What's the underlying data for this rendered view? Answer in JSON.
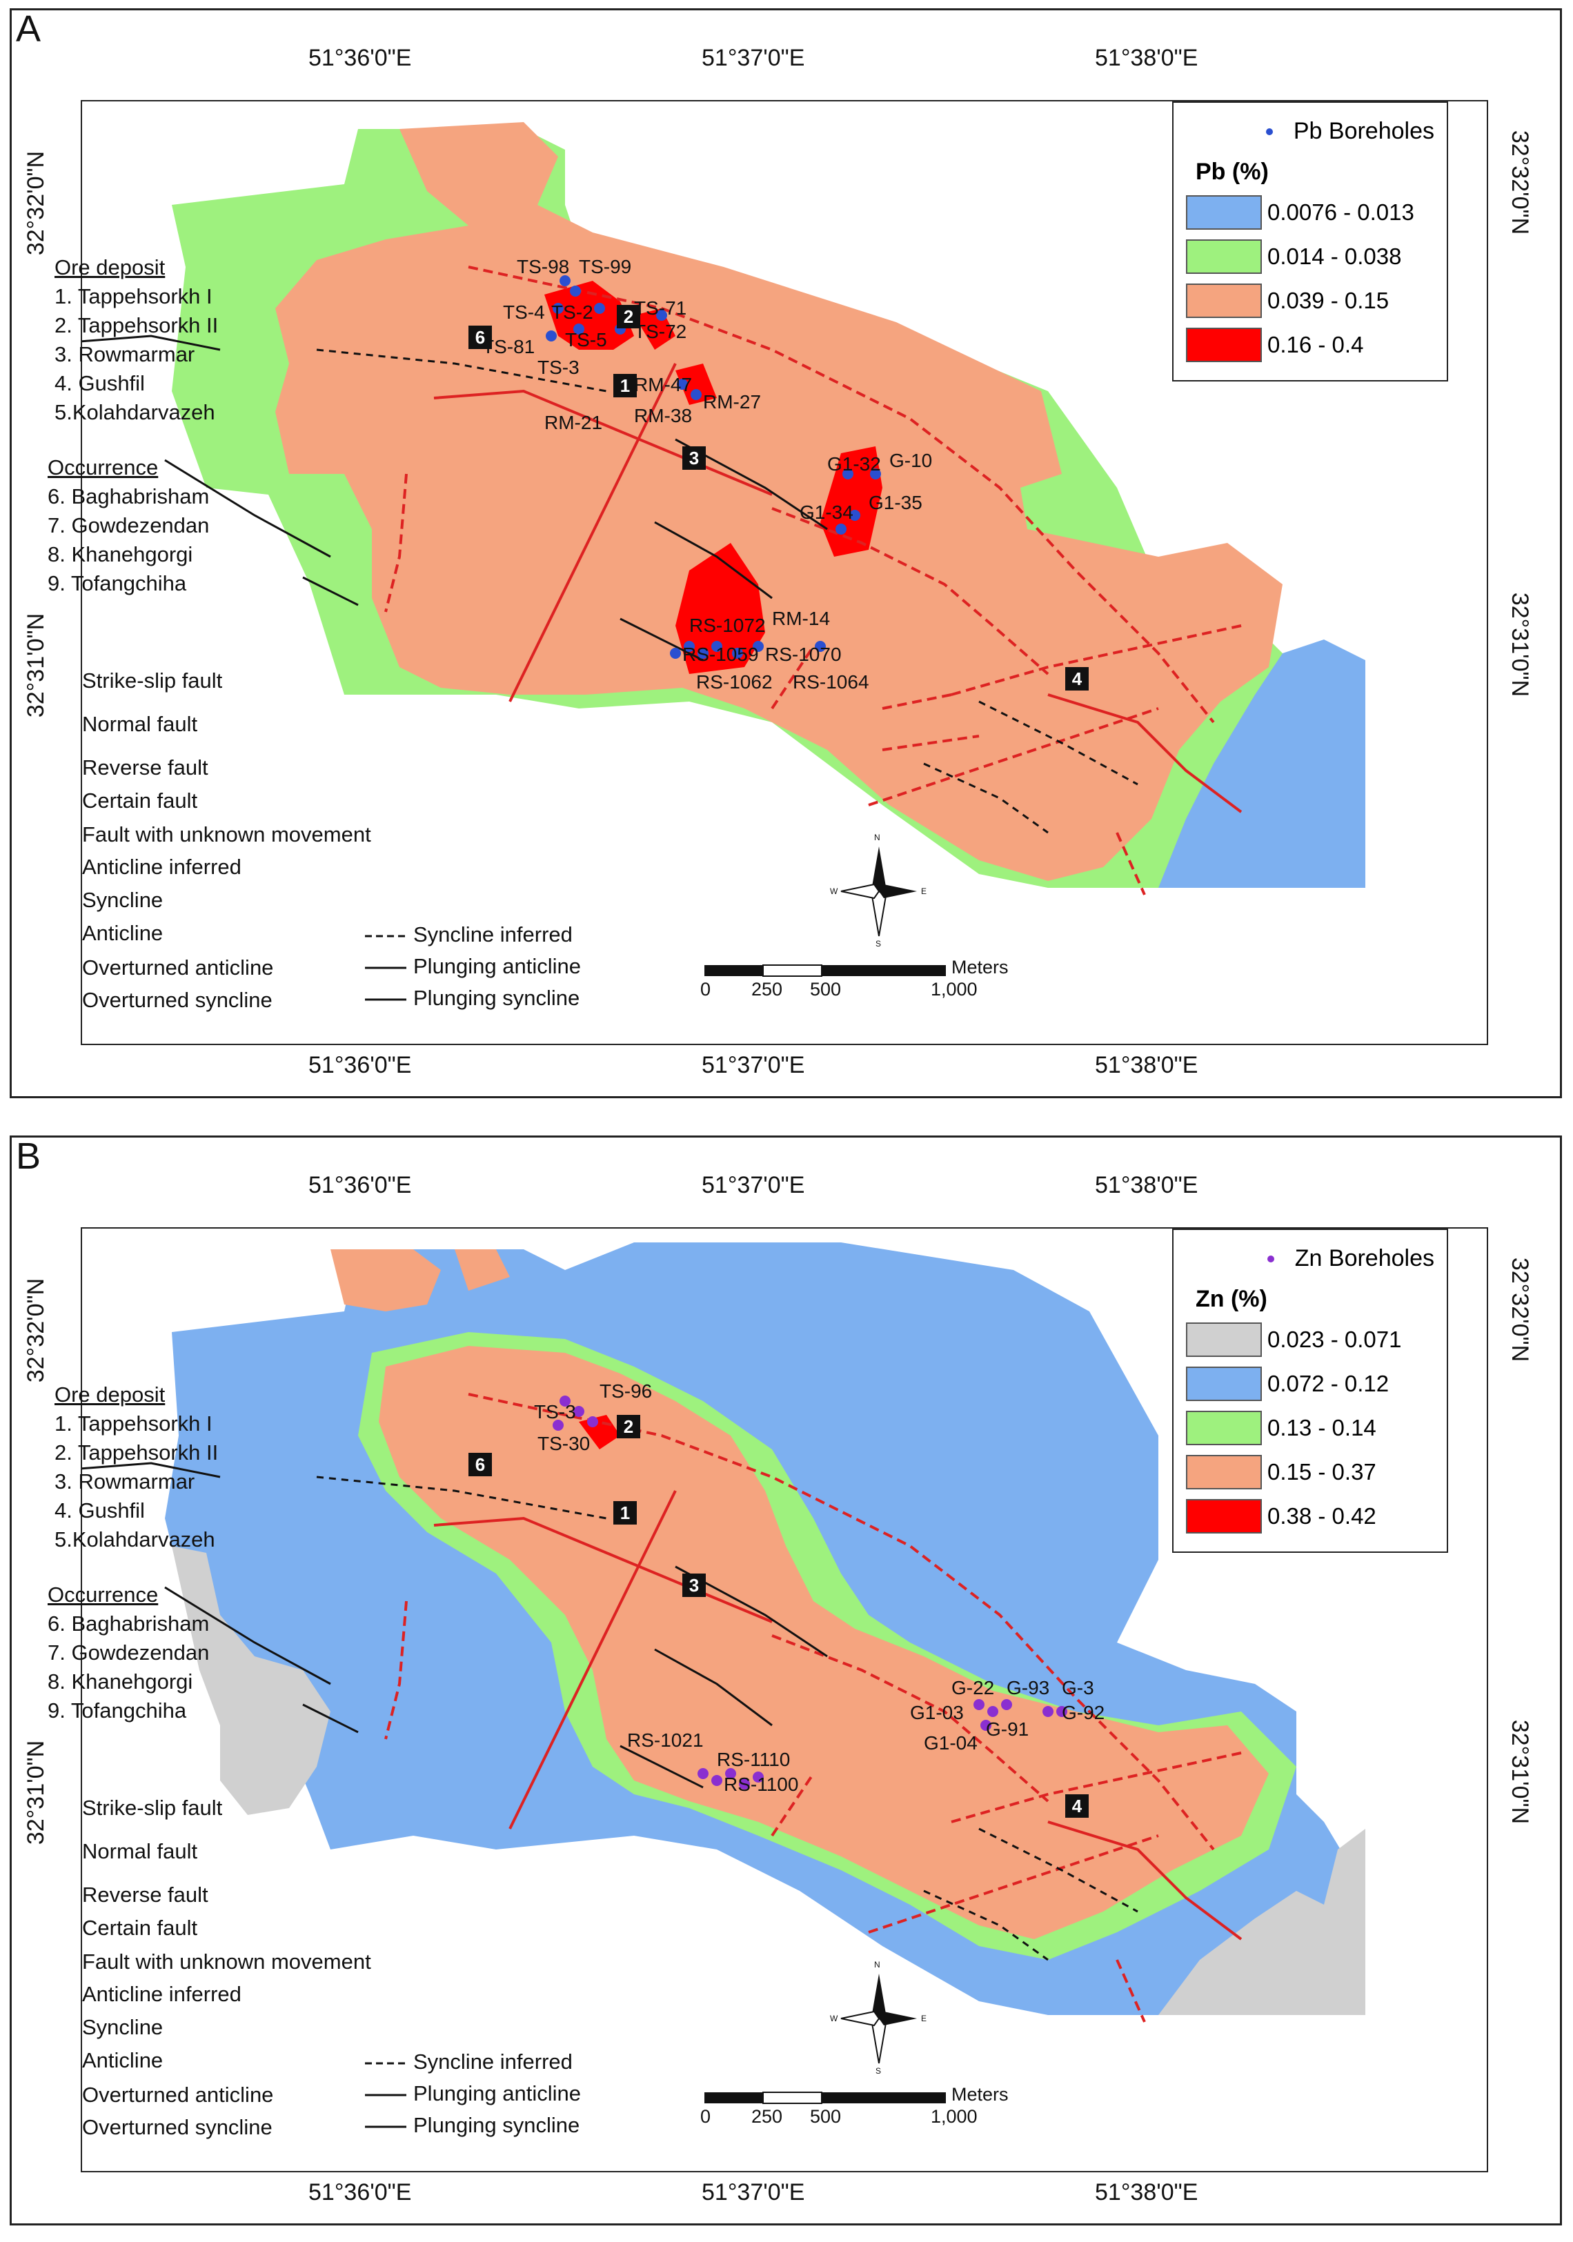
{
  "panelA": {
    "label": "A",
    "coords": {
      "top": [
        "51°36'0\"E",
        "51°37'0\"E",
        "51°38'0\"E"
      ],
      "bottom": [
        "51°36'0\"E",
        "51°37'0\"E",
        "51°38'0\"E"
      ],
      "left": [
        "32°32'0\"N",
        "32°31'0\"N"
      ],
      "right": [
        "32°32'0\"N",
        "32°31'0\"N"
      ]
    },
    "legend": {
      "points_label": "Pb Boreholes",
      "title": "Pb (%)",
      "classes": [
        {
          "range": "0.0076 - 0.013",
          "color": "#7db0f0"
        },
        {
          "range": "0.014 - 0.038",
          "color": "#9ef17e"
        },
        {
          "range": "0.039 - 0.15",
          "color": "#f5a47f"
        },
        {
          "range": "0.16 - 0.4",
          "color": "#ff0000"
        }
      ],
      "point_color": "#2a4fd0"
    },
    "boreholes": [
      "TS-98",
      "TS-99",
      "TS-4",
      "TS-2",
      "TS-71",
      "TS-72",
      "TS-81",
      "TS-5",
      "TS-3",
      "RM-47",
      "RM-21",
      "RM-38",
      "RM-27",
      "G1-32",
      "G-10",
      "G1-34",
      "G1-35",
      "RS-1072",
      "RM-14",
      "RS-1059",
      "RS-1070",
      "RS-1062",
      "RS-1064"
    ]
  },
  "panelB": {
    "label": "B",
    "coords": {
      "top": [
        "51°36'0\"E",
        "51°37'0\"E",
        "51°38'0\"E"
      ],
      "bottom": [
        "51°36'0\"E",
        "51°37'0\"E",
        "51°38'0\"E"
      ],
      "left": [
        "32°32'0\"N",
        "32°31'0\"N"
      ],
      "right": [
        "32°32'0\"N",
        "32°31'0\"N"
      ]
    },
    "legend": {
      "points_label": "Zn Boreholes",
      "title": "Zn (%)",
      "classes": [
        {
          "range": "0.023 - 0.071",
          "color": "#d0d0d0"
        },
        {
          "range": "0.072 - 0.12",
          "color": "#7db0f0"
        },
        {
          "range": "0.13 - 0.14",
          "color": "#9ef17e"
        },
        {
          "range": "0.15 - 0.37",
          "color": "#f5a47f"
        },
        {
          "range": "0.38 - 0.42",
          "color": "#ff0000"
        }
      ],
      "point_color": "#8a2fd0"
    },
    "boreholes": [
      "TS-96",
      "TS-3",
      "TS-30",
      "G-22",
      "G-93",
      "G-3",
      "G1-03",
      "G-92",
      "G-91",
      "G1-04",
      "RS-1021",
      "RS-1110",
      "RS-1100"
    ]
  },
  "ore_deposit": {
    "heading": "Ore deposit",
    "items": [
      "1. Tappehsorkh I",
      "2. Tappehsorkh II",
      "3. Rowmarmar",
      "4. Gushfil",
      "5.Kolahdarvazeh"
    ]
  },
  "occurrence": {
    "heading": "Occurrence",
    "items": [
      "6. Baghabrisham",
      "7. Gowdezendan",
      "8. Khanehgorgi",
      "9. Tofangchiha"
    ]
  },
  "fault_legend": [
    "Strike-slip fault",
    "Normal fault",
    "Reverse fault",
    "Certain fault",
    "Fault with unknown movement"
  ],
  "fold_legend_left": [
    "Anticline inferred",
    "Syncline",
    "Anticline",
    "Overturned anticline",
    "Overturned syncline"
  ],
  "fold_legend_right": [
    "Syncline inferred",
    "Plunging anticline",
    "Plunging syncline"
  ],
  "scale": {
    "ticks": [
      "0",
      "250",
      "500",
      "1,000"
    ],
    "unit": "Meters"
  },
  "compass": {
    "n": "N",
    "s": "S",
    "e": "E",
    "w": "W"
  },
  "deposit_markers": [
    "1",
    "2",
    "3",
    "4",
    "6"
  ]
}
